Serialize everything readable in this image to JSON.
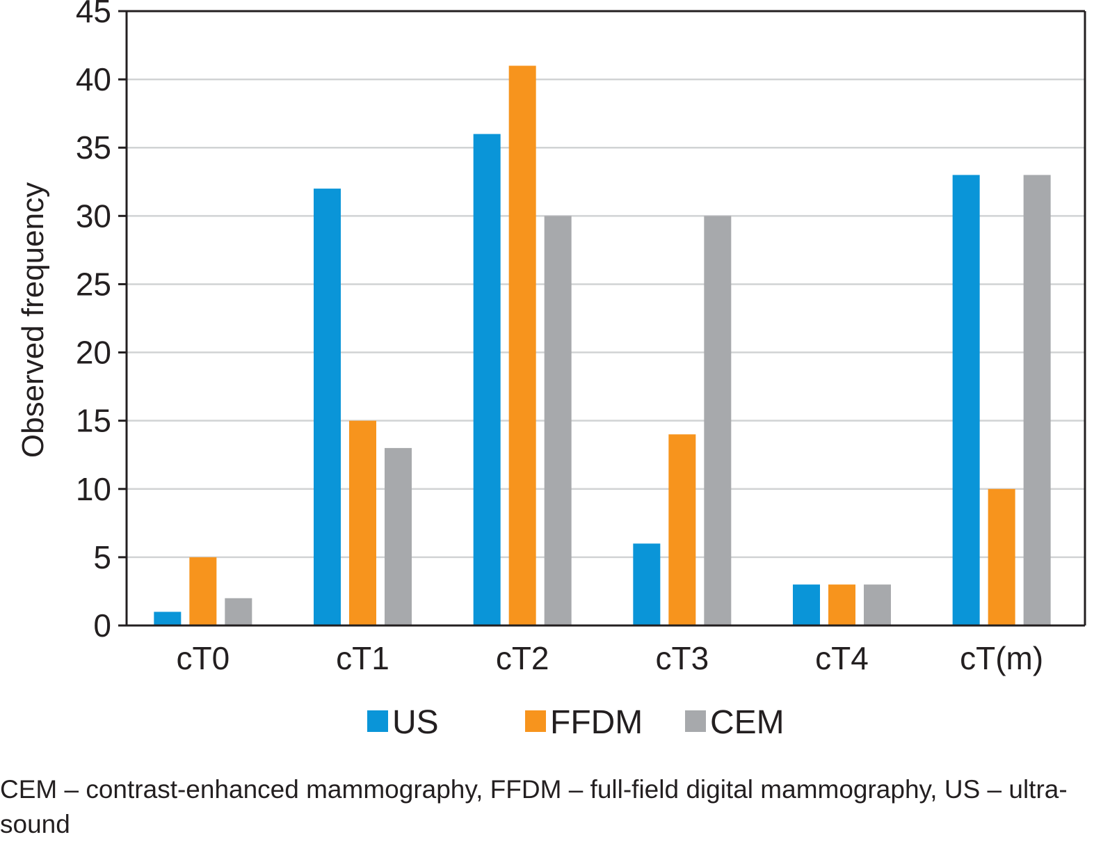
{
  "chart_data": {
    "type": "bar",
    "categories": [
      "cT0",
      "cT1",
      "cT2",
      "cT3",
      "cT4",
      "cT(m)"
    ],
    "series": [
      {
        "name": "US",
        "color": "#0a95d8",
        "values": [
          1,
          32,
          36,
          6,
          3,
          33
        ]
      },
      {
        "name": "FFDM",
        "color": "#f7941d",
        "values": [
          5,
          15,
          41,
          14,
          3,
          10
        ]
      },
      {
        "name": "CEM",
        "color": "#a7a9ac",
        "values": [
          2,
          13,
          30,
          30,
          3,
          33
        ]
      }
    ],
    "ylabel": "Observed frequency",
    "xlabel": "",
    "ylim": [
      0,
      45
    ],
    "yticks": [
      0,
      5,
      10,
      15,
      20,
      25,
      30,
      35,
      40,
      45
    ],
    "grid": true,
    "legend_position": "bottom"
  },
  "caption": "CEM – contrast-enhanced mammography, FFDM – full-field digital mammography, US – ultra-sound"
}
